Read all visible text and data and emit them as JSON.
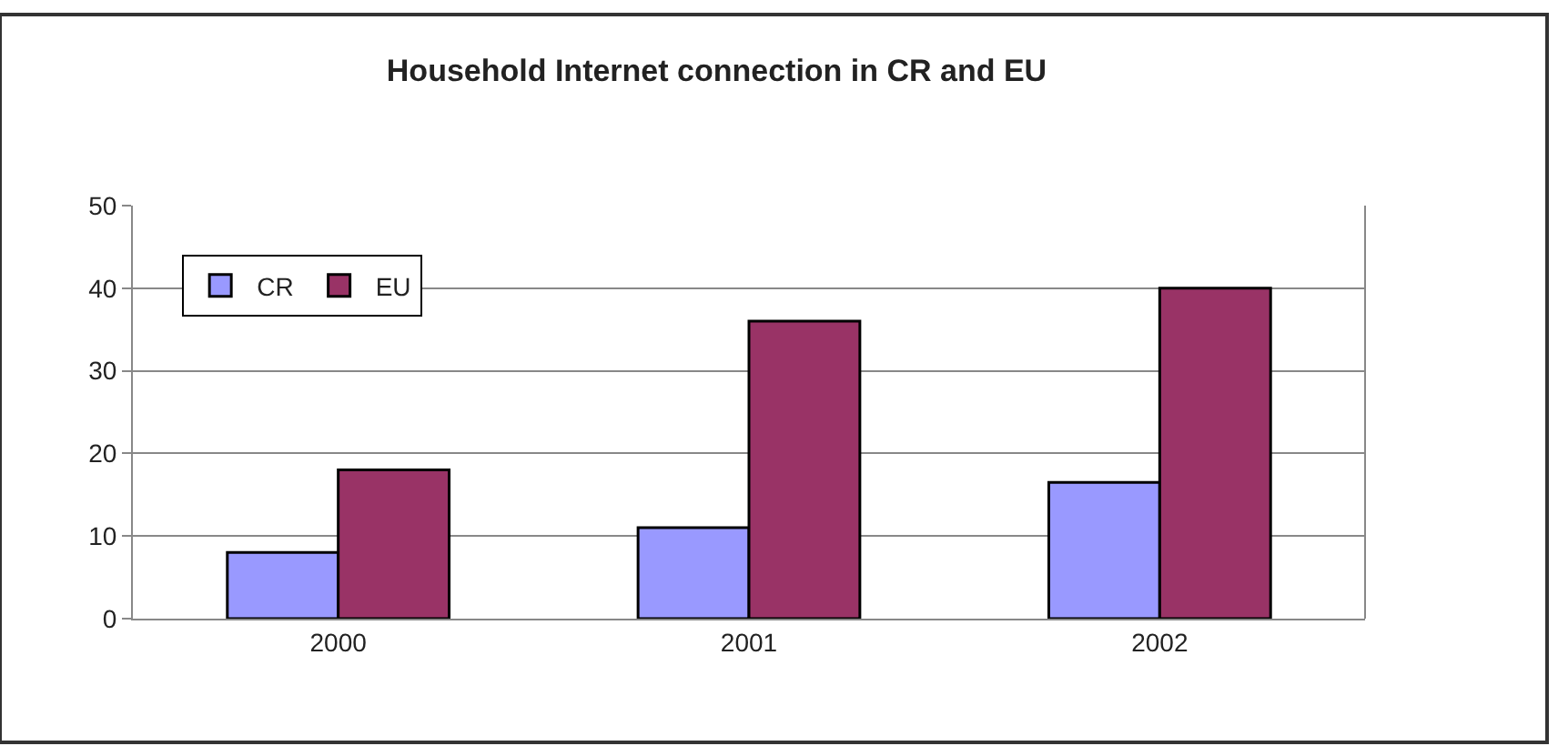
{
  "chart_data": {
    "type": "bar",
    "title": "Household Internet connection in CR and EU",
    "categories": [
      "2000",
      "2001",
      "2002"
    ],
    "series": [
      {
        "name": "CR",
        "color": "#9999ff",
        "values": [
          8,
          11,
          16.5
        ]
      },
      {
        "name": "EU",
        "color": "#993366",
        "values": [
          18,
          36,
          40
        ]
      }
    ],
    "ylim": [
      0,
      50
    ],
    "yticks": [
      0,
      10,
      20,
      30,
      40,
      50
    ],
    "grid": "y",
    "legend": "top left"
  }
}
